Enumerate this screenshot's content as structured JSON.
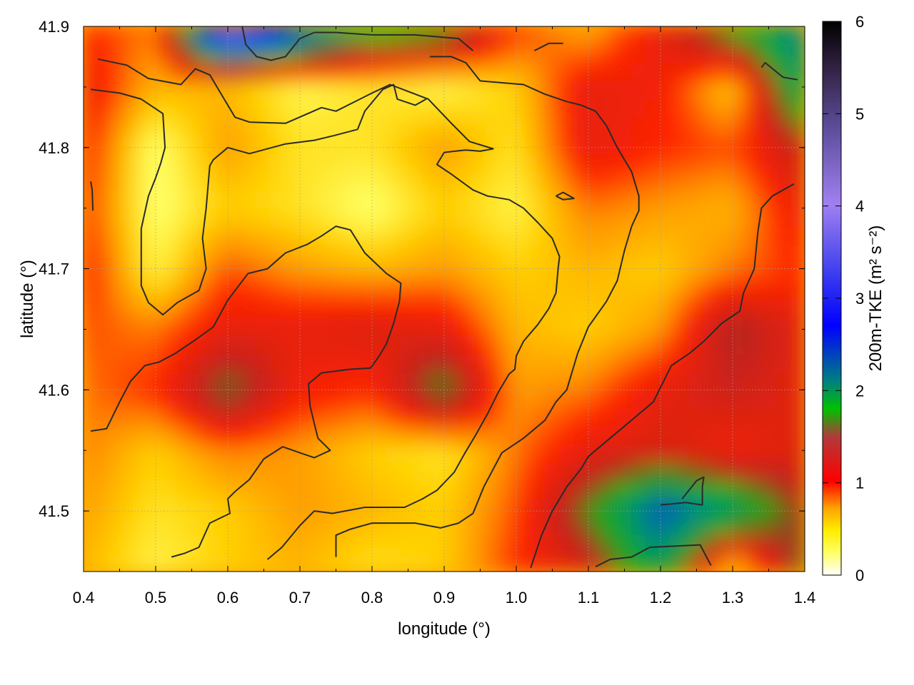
{
  "chart_data": {
    "type": "heatmap",
    "xlabel": "longitude (°)",
    "ylabel": "latitude (°)",
    "colorbar_label": "200m-TKE (m² s⁻²)",
    "xlim": [
      0.4,
      1.4
    ],
    "ylim": [
      41.45,
      41.9
    ],
    "x_ticks": [
      "0.4",
      "0.5",
      "0.6",
      "0.7",
      "0.8",
      "0.9",
      "1.0",
      "1.1",
      "1.2",
      "1.3",
      "1.4"
    ],
    "y_ticks": [
      "41.5",
      "41.6",
      "41.7",
      "41.8",
      "41.9"
    ],
    "colorbar_range": [
      0,
      6
    ],
    "colorbar_ticks": [
      "0",
      "1",
      "2",
      "3",
      "4",
      "5",
      "6"
    ],
    "colormap": [
      "#ffffff",
      "#ffff00",
      "#ffa500",
      "#ff0000",
      "#00d000",
      "#0000ff",
      "#9370db",
      "#000000"
    ],
    "grid": true,
    "field_samples": {
      "lon": [
        0.4,
        0.5,
        0.6,
        0.7,
        0.8,
        0.9,
        1.0,
        1.1,
        1.2,
        1.3,
        1.4
      ],
      "lat": [
        41.45,
        41.5,
        41.55,
        41.6,
        41.65,
        41.7,
        41.75,
        41.8,
        41.85,
        41.9
      ],
      "values": [
        [
          0.6,
          0.3,
          0.5,
          0.6,
          0.4,
          0.5,
          1.0,
          1.3,
          2.2,
          0.3,
          1.8
        ],
        [
          0.7,
          0.4,
          0.5,
          0.7,
          0.6,
          0.5,
          0.9,
          1.8,
          2.8,
          2.3,
          1.5
        ],
        [
          0.8,
          0.5,
          0.8,
          0.7,
          0.5,
          0.4,
          0.8,
          1.2,
          1.3,
          1.1,
          1.3
        ],
        [
          0.8,
          1.0,
          1.8,
          1.1,
          1.0,
          1.9,
          0.7,
          0.8,
          1.2,
          1.4,
          1.2
        ],
        [
          0.9,
          0.8,
          1.2,
          1.2,
          1.3,
          1.2,
          0.6,
          0.5,
          0.7,
          1.6,
          1.2
        ],
        [
          1.1,
          0.3,
          0.9,
          0.7,
          0.6,
          0.7,
          0.5,
          0.6,
          0.5,
          0.8,
          1.0
        ],
        [
          1.0,
          0.2,
          0.5,
          0.4,
          0.2,
          0.5,
          0.3,
          0.8,
          0.7,
          0.6,
          1.2
        ],
        [
          1.1,
          0.2,
          0.7,
          0.4,
          0.4,
          0.7,
          0.4,
          1.2,
          1.0,
          0.9,
          1.5
        ],
        [
          1.2,
          0.6,
          0.6,
          0.3,
          0.4,
          0.3,
          0.5,
          1.2,
          1.1,
          0.5,
          2.4
        ],
        [
          1.0,
          0.8,
          4.2,
          3.0,
          2.2,
          2.0,
          1.0,
          0.6,
          1.2,
          2.0,
          2.6
        ]
      ]
    },
    "contours": [
      [
        [
          0.42,
          41.873
        ],
        [
          0.46,
          41.868
        ],
        [
          0.49,
          41.857
        ],
        [
          0.535,
          41.852
        ],
        [
          0.555,
          41.865
        ],
        [
          0.575,
          41.86
        ],
        [
          0.59,
          41.845
        ],
        [
          0.61,
          41.825
        ],
        [
          0.63,
          41.821
        ],
        [
          0.68,
          41.82
        ],
        [
          0.73,
          41.833
        ],
        [
          0.75,
          41.83
        ],
        [
          0.8,
          41.845
        ],
        [
          0.825,
          41.852
        ],
        [
          0.878,
          41.84
        ],
        [
          0.91,
          41.82
        ],
        [
          0.935,
          41.805
        ],
        [
          0.968,
          41.799
        ],
        [
          0.95,
          41.797
        ],
        [
          0.93,
          41.798
        ],
        [
          0.9,
          41.796
        ],
        [
          0.89,
          41.786
        ],
        [
          0.91,
          41.778
        ],
        [
          0.94,
          41.765
        ],
        [
          0.96,
          41.76
        ],
        [
          0.99,
          41.757
        ],
        [
          1.01,
          41.75
        ],
        [
          1.03,
          41.738
        ],
        [
          1.05,
          41.725
        ],
        [
          1.06,
          41.71
        ],
        [
          1.058,
          41.7
        ],
        [
          1.055,
          41.68
        ],
        [
          1.045,
          41.667
        ],
        [
          1.03,
          41.654
        ],
        [
          1.01,
          41.64
        ],
        [
          1.0,
          41.628
        ],
        [
          0.998,
          41.617
        ],
        [
          0.99,
          41.613
        ],
        [
          0.975,
          41.598
        ],
        [
          0.96,
          41.58
        ],
        [
          0.944,
          41.563
        ],
        [
          0.928,
          41.547
        ],
        [
          0.914,
          41.532
        ],
        [
          0.89,
          41.517
        ],
        [
          0.87,
          41.51
        ],
        [
          0.845,
          41.503
        ],
        [
          0.79,
          41.503
        ],
        [
          0.745,
          41.498
        ],
        [
          0.72,
          41.5
        ],
        [
          0.7,
          41.488
        ],
        [
          0.675,
          41.47
        ],
        [
          0.655,
          41.46
        ]
      ],
      [
        [
          0.41,
          41.566
        ],
        [
          0.432,
          41.568
        ],
        [
          0.45,
          41.59
        ],
        [
          0.465,
          41.607
        ],
        [
          0.485,
          41.62
        ],
        [
          0.505,
          41.623
        ],
        [
          0.527,
          41.63
        ],
        [
          0.557,
          41.642
        ],
        [
          0.58,
          41.652
        ],
        [
          0.6,
          41.674
        ],
        [
          0.628,
          41.696
        ],
        [
          0.655,
          41.7
        ],
        [
          0.68,
          41.713
        ],
        [
          0.71,
          41.72
        ],
        [
          0.73,
          41.727
        ],
        [
          0.75,
          41.735
        ],
        [
          0.77,
          41.732
        ],
        [
          0.79,
          41.713
        ],
        [
          0.82,
          41.696
        ],
        [
          0.84,
          41.688
        ],
        [
          0.838,
          41.673
        ],
        [
          0.83,
          41.655
        ],
        [
          0.82,
          41.638
        ],
        [
          0.81,
          41.628
        ],
        [
          0.798,
          41.618
        ],
        [
          0.77,
          41.617
        ],
        [
          0.73,
          41.614
        ],
        [
          0.712,
          41.605
        ],
        [
          0.714,
          41.587
        ],
        [
          0.72,
          41.572
        ],
        [
          0.725,
          41.56
        ],
        [
          0.742,
          41.55
        ],
        [
          0.72,
          41.544
        ],
        [
          0.7,
          41.548
        ],
        [
          0.676,
          41.553
        ],
        [
          0.65,
          41.543
        ],
        [
          0.63,
          41.526
        ],
        [
          0.61,
          41.516
        ],
        [
          0.6,
          41.51
        ],
        [
          0.603,
          41.498
        ],
        [
          0.575,
          41.49
        ],
        [
          0.56,
          41.47
        ],
        [
          0.54,
          41.465
        ],
        [
          0.522,
          41.462
        ]
      ],
      [
        [
          0.41,
          41.848
        ],
        [
          0.45,
          41.845
        ],
        [
          0.48,
          41.84
        ],
        [
          0.51,
          41.828
        ],
        [
          0.513,
          41.8
        ],
        [
          0.507,
          41.787
        ],
        [
          0.5,
          41.775
        ],
        [
          0.49,
          41.76
        ],
        [
          0.48,
          41.733
        ],
        [
          0.48,
          41.72
        ],
        [
          0.48,
          41.7
        ],
        [
          0.48,
          41.686
        ],
        [
          0.49,
          41.672
        ],
        [
          0.51,
          41.662
        ],
        [
          0.53,
          41.672
        ],
        [
          0.56,
          41.682
        ],
        [
          0.57,
          41.7
        ],
        [
          0.565,
          41.725
        ],
        [
          0.57,
          41.75
        ],
        [
          0.575,
          41.785
        ],
        [
          0.58,
          41.79
        ],
        [
          0.6,
          41.8
        ],
        [
          0.63,
          41.795
        ],
        [
          0.68,
          41.803
        ],
        [
          0.72,
          41.806
        ],
        [
          0.748,
          41.81
        ],
        [
          0.78,
          41.815
        ],
        [
          0.79,
          41.83
        ],
        [
          0.815,
          41.848
        ],
        [
          0.83,
          41.852
        ],
        [
          0.835,
          41.84
        ],
        [
          0.86,
          41.835
        ],
        [
          0.875,
          41.84
        ]
      ],
      [
        [
          0.41,
          41.772
        ],
        [
          0.412,
          41.765
        ],
        [
          0.413,
          41.748
        ]
      ],
      [
        [
          0.75,
          41.462
        ],
        [
          0.75,
          41.48
        ],
        [
          0.77,
          41.485
        ],
        [
          0.8,
          41.49
        ],
        [
          0.86,
          41.49
        ],
        [
          0.895,
          41.486
        ],
        [
          0.92,
          41.49
        ],
        [
          0.94,
          41.498
        ],
        [
          0.955,
          41.52
        ],
        [
          0.98,
          41.548
        ],
        [
          1.01,
          41.56
        ],
        [
          1.04,
          41.575
        ],
        [
          1.055,
          41.59
        ],
        [
          1.07,
          41.6
        ],
        [
          1.085,
          41.63
        ],
        [
          1.1,
          41.652
        ],
        [
          1.125,
          41.673
        ],
        [
          1.14,
          41.69
        ],
        [
          1.15,
          41.715
        ],
        [
          1.16,
          41.735
        ],
        [
          1.17,
          41.748
        ],
        [
          1.17,
          41.76
        ],
        [
          1.16,
          41.78
        ],
        [
          1.14,
          41.8
        ],
        [
          1.125,
          41.818
        ],
        [
          1.11,
          41.83
        ],
        [
          1.09,
          41.835
        ],
        [
          1.07,
          41.838
        ],
        [
          1.04,
          41.844
        ],
        [
          1.01,
          41.852
        ],
        [
          0.95,
          41.855
        ],
        [
          0.93,
          41.87
        ],
        [
          0.91,
          41.875
        ],
        [
          0.88,
          41.875
        ]
      ],
      [
        [
          1.02,
          41.453
        ],
        [
          1.035,
          41.48
        ],
        [
          1.05,
          41.5
        ],
        [
          1.07,
          41.52
        ],
        [
          1.09,
          41.535
        ],
        [
          1.1,
          41.545
        ],
        [
          1.13,
          41.56
        ],
        [
          1.15,
          41.57
        ],
        [
          1.17,
          41.58
        ],
        [
          1.19,
          41.59
        ],
        [
          1.205,
          41.608
        ],
        [
          1.215,
          41.62
        ],
        [
          1.23,
          41.626
        ],
        [
          1.24,
          41.63
        ],
        [
          1.26,
          41.64
        ],
        [
          1.285,
          41.655
        ],
        [
          1.31,
          41.665
        ],
        [
          1.315,
          41.68
        ],
        [
          1.33,
          41.7
        ],
        [
          1.335,
          41.73
        ],
        [
          1.34,
          41.75
        ],
        [
          1.355,
          41.76
        ],
        [
          1.385,
          41.77
        ]
      ],
      [
        [
          1.11,
          41.454
        ],
        [
          1.13,
          41.46
        ],
        [
          1.16,
          41.462
        ],
        [
          1.185,
          41.47
        ],
        [
          1.255,
          41.472
        ],
        [
          1.27,
          41.455
        ]
      ],
      [
        [
          1.2,
          41.505
        ],
        [
          1.235,
          41.507
        ],
        [
          1.258,
          41.505
        ],
        [
          1.258,
          41.52
        ],
        [
          1.26,
          41.528
        ],
        [
          1.25,
          41.525
        ],
        [
          1.23,
          41.51
        ]
      ],
      [
        [
          1.055,
          41.76
        ],
        [
          1.065,
          41.763
        ],
        [
          1.08,
          41.758
        ],
        [
          1.065,
          41.757
        ],
        [
          1.055,
          41.76
        ]
      ],
      [
        [
          0.62,
          41.9
        ],
        [
          0.625,
          41.885
        ],
        [
          0.64,
          41.875
        ],
        [
          0.66,
          41.872
        ],
        [
          0.68,
          41.875
        ],
        [
          0.7,
          41.89
        ],
        [
          0.72,
          41.895
        ],
        [
          0.75,
          41.895
        ],
        [
          0.8,
          41.893
        ],
        [
          0.86,
          41.893
        ],
        [
          0.92,
          41.89
        ],
        [
          0.94,
          41.88
        ]
      ],
      [
        [
          1.025,
          41.88
        ],
        [
          1.045,
          41.886
        ],
        [
          1.065,
          41.886
        ]
      ],
      [
        [
          1.34,
          41.866
        ],
        [
          1.345,
          41.87
        ],
        [
          1.37,
          41.858
        ],
        [
          1.39,
          41.856
        ]
      ]
    ]
  }
}
